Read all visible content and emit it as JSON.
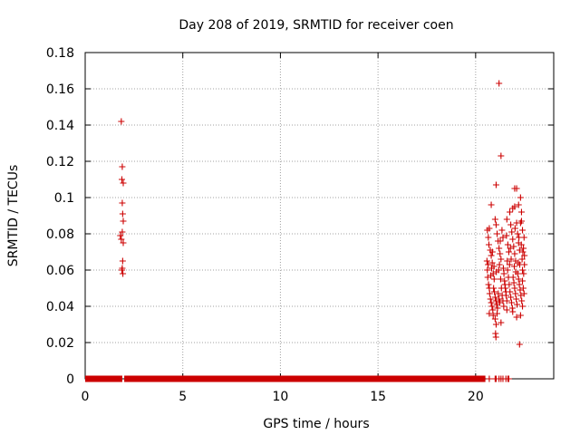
{
  "chart_data": {
    "type": "scatter",
    "title": "Day 208 of 2019, SRMTID for receiver coen",
    "xlabel": "GPS time / hours",
    "ylabel": "SRMTID / TECUs",
    "xlim": [
      0,
      24
    ],
    "ylim": [
      0,
      0.18
    ],
    "xticks": [
      0,
      5,
      10,
      15,
      20
    ],
    "yticks": [
      0,
      0.02,
      0.04,
      0.06,
      0.08,
      0.1,
      0.12,
      0.14,
      0.16,
      0.18
    ],
    "grid": true,
    "marker": "plus",
    "color": "#cc0000",
    "baseline": {
      "y": 0,
      "segments": [
        [
          0,
          1.9
        ],
        [
          2.0,
          20.5
        ]
      ],
      "points": [
        20.7,
        21.0,
        21.05,
        21.2,
        21.3,
        21.4,
        21.55,
        21.65,
        21.7
      ]
    },
    "series": [
      {
        "points": [
          [
            1.8,
            0.079
          ],
          [
            1.85,
            0.142
          ],
          [
            1.9,
            0.117
          ],
          [
            1.88,
            0.11
          ],
          [
            1.95,
            0.108
          ],
          [
            1.9,
            0.097
          ],
          [
            1.92,
            0.091
          ],
          [
            1.95,
            0.087
          ],
          [
            1.9,
            0.081
          ],
          [
            1.85,
            0.077
          ],
          [
            1.95,
            0.075
          ],
          [
            1.92,
            0.065
          ],
          [
            1.9,
            0.061
          ],
          [
            1.88,
            0.06
          ],
          [
            1.93,
            0.058
          ],
          [
            21.2,
            0.163
          ],
          [
            21.3,
            0.123
          ],
          [
            21.05,
            0.107
          ],
          [
            20.8,
            0.096
          ],
          [
            22.0,
            0.105
          ],
          [
            22.1,
            0.105
          ],
          [
            22.3,
            0.1
          ],
          [
            22.2,
            0.096
          ],
          [
            22.35,
            0.092
          ],
          [
            21.9,
            0.094
          ],
          [
            22.0,
            0.095
          ],
          [
            20.6,
            0.082
          ],
          [
            20.65,
            0.078
          ],
          [
            20.7,
            0.083
          ],
          [
            20.75,
            0.071
          ],
          [
            20.8,
            0.068
          ],
          [
            20.85,
            0.064
          ],
          [
            20.9,
            0.058
          ],
          [
            20.95,
            0.055
          ],
          [
            21.0,
            0.088
          ],
          [
            21.05,
            0.085
          ],
          [
            21.1,
            0.08
          ],
          [
            21.15,
            0.076
          ],
          [
            21.2,
            0.072
          ],
          [
            21.25,
            0.069
          ],
          [
            21.3,
            0.066
          ],
          [
            21.35,
            0.082
          ],
          [
            21.4,
            0.078
          ],
          [
            21.45,
            0.058
          ],
          [
            21.5,
            0.052
          ],
          [
            21.55,
            0.048
          ],
          [
            21.6,
            0.088
          ],
          [
            21.65,
            0.074
          ],
          [
            21.7,
            0.07
          ],
          [
            21.75,
            0.092
          ],
          [
            21.8,
            0.085
          ],
          [
            21.85,
            0.081
          ],
          [
            21.9,
            0.077
          ],
          [
            21.95,
            0.073
          ],
          [
            22.0,
            0.069
          ],
          [
            22.05,
            0.065
          ],
          [
            22.1,
            0.086
          ],
          [
            22.15,
            0.08
          ],
          [
            22.2,
            0.075
          ],
          [
            22.25,
            0.071
          ],
          [
            22.3,
            0.086
          ],
          [
            22.35,
            0.087
          ],
          [
            22.4,
            0.082
          ],
          [
            22.45,
            0.072
          ],
          [
            22.5,
            0.068
          ],
          [
            22.4,
            0.06
          ],
          [
            20.6,
            0.06
          ],
          [
            20.62,
            0.056
          ],
          [
            20.66,
            0.052
          ],
          [
            20.7,
            0.05
          ],
          [
            20.72,
            0.047
          ],
          [
            20.76,
            0.044
          ],
          [
            20.8,
            0.042
          ],
          [
            20.84,
            0.04
          ],
          [
            20.88,
            0.038
          ],
          [
            20.92,
            0.05
          ],
          [
            20.96,
            0.048
          ],
          [
            21.0,
            0.045
          ],
          [
            21.04,
            0.043
          ],
          [
            21.08,
            0.041
          ],
          [
            21.12,
            0.039
          ],
          [
            21.16,
            0.047
          ],
          [
            21.2,
            0.044
          ],
          [
            21.24,
            0.042
          ],
          [
            21.28,
            0.055
          ],
          [
            21.32,
            0.05
          ],
          [
            21.36,
            0.046
          ],
          [
            21.4,
            0.043
          ],
          [
            21.44,
            0.04
          ],
          [
            21.48,
            0.054
          ],
          [
            21.52,
            0.05
          ],
          [
            21.56,
            0.046
          ],
          [
            21.6,
            0.043
          ],
          [
            21.64,
            0.06
          ],
          [
            21.68,
            0.056
          ],
          [
            21.72,
            0.052
          ],
          [
            21.76,
            0.048
          ],
          [
            21.8,
            0.045
          ],
          [
            21.84,
            0.042
          ],
          [
            21.88,
            0.039
          ],
          [
            21.92,
            0.056
          ],
          [
            21.96,
            0.053
          ],
          [
            22.0,
            0.05
          ],
          [
            22.04,
            0.047
          ],
          [
            22.08,
            0.044
          ],
          [
            22.12,
            0.041
          ],
          [
            22.16,
            0.058
          ],
          [
            22.2,
            0.055
          ],
          [
            22.24,
            0.052
          ],
          [
            22.28,
            0.049
          ],
          [
            22.32,
            0.046
          ],
          [
            22.36,
            0.043
          ],
          [
            22.4,
            0.054
          ],
          [
            22.44,
            0.05
          ],
          [
            22.48,
            0.047
          ],
          [
            20.7,
            0.036
          ],
          [
            20.9,
            0.035
          ],
          [
            21.0,
            0.033
          ],
          [
            21.05,
            0.03
          ],
          [
            21.1,
            0.036
          ],
          [
            21.3,
            0.031
          ],
          [
            21.6,
            0.038
          ],
          [
            21.9,
            0.037
          ],
          [
            22.1,
            0.034
          ],
          [
            22.3,
            0.035
          ],
          [
            22.4,
            0.04
          ],
          [
            21.02,
            0.025
          ],
          [
            21.04,
            0.023
          ],
          [
            22.25,
            0.019
          ],
          [
            20.58,
            0.065
          ],
          [
            20.64,
            0.063
          ],
          [
            20.78,
            0.057
          ],
          [
            20.82,
            0.061
          ],
          [
            20.94,
            0.062
          ],
          [
            21.06,
            0.059
          ],
          [
            21.18,
            0.06
          ],
          [
            21.22,
            0.063
          ],
          [
            21.42,
            0.061
          ],
          [
            21.62,
            0.065
          ],
          [
            21.74,
            0.063
          ],
          [
            21.82,
            0.066
          ],
          [
            21.98,
            0.062
          ],
          [
            22.06,
            0.059
          ],
          [
            22.18,
            0.064
          ],
          [
            22.26,
            0.063
          ],
          [
            22.38,
            0.066
          ],
          [
            22.46,
            0.058
          ],
          [
            22.5,
            0.063
          ],
          [
            22.42,
            0.07
          ],
          [
            20.68,
            0.074
          ],
          [
            20.86,
            0.07
          ],
          [
            21.26,
            0.076
          ],
          [
            21.58,
            0.079
          ],
          [
            21.78,
            0.072
          ],
          [
            22.02,
            0.083
          ],
          [
            22.22,
            0.078
          ],
          [
            22.34,
            0.074
          ],
          [
            22.48,
            0.078
          ]
        ]
      }
    ]
  }
}
